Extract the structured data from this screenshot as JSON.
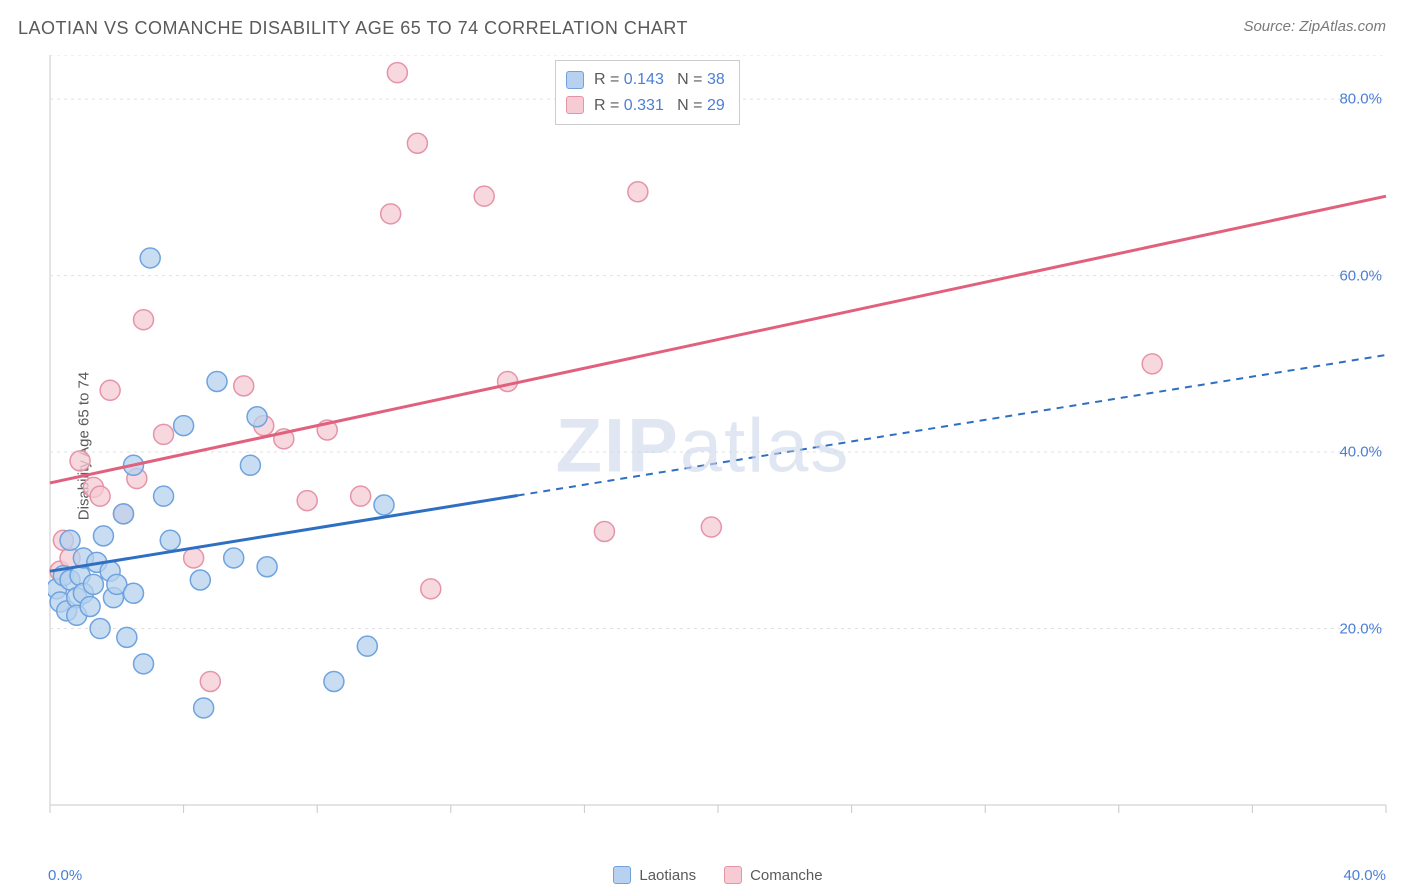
{
  "title": "LAOTIAN VS COMANCHE DISABILITY AGE 65 TO 74 CORRELATION CHART",
  "source": "Source: ZipAtlas.com",
  "ylabel": "Disability Age 65 to 74",
  "watermark": {
    "bold": "ZIP",
    "rest": "atlas"
  },
  "chart": {
    "type": "scatter",
    "background_color": "#ffffff",
    "grid_color": "#e0e0e0",
    "axis_color": "#dcdcdc",
    "tick_color": "#c8c8c8",
    "label_fontsize": 15,
    "tick_fontsize": 15,
    "value_color": "#4b7fd6",
    "xlim": [
      0,
      40
    ],
    "ylim": [
      0,
      85
    ],
    "y_ticks": [
      20,
      40,
      60,
      80
    ],
    "x_ticks_minor_step": 4,
    "x_tick_label_min": "0.0%",
    "x_tick_label_max": "40.0%",
    "series": [
      {
        "name": "Laotians",
        "color_fill": "#b7d1ee",
        "color_stroke": "#6ea3de",
        "color_line": "#2f6fc2",
        "marker_radius": 10,
        "marker_opacity": 0.75,
        "trend": {
          "x1": 0,
          "y1": 26.5,
          "x2": 40,
          "y2": 51,
          "solid_until_x": 14
        },
        "stats": {
          "R": "0.143",
          "N": "38"
        },
        "points": [
          [
            0.2,
            24.5
          ],
          [
            0.3,
            23.0
          ],
          [
            0.4,
            26.0
          ],
          [
            0.5,
            22.0
          ],
          [
            0.6,
            25.5
          ],
          [
            0.6,
            30.0
          ],
          [
            0.8,
            23.5
          ],
          [
            0.8,
            21.5
          ],
          [
            0.9,
            26.0
          ],
          [
            1.0,
            24.0
          ],
          [
            1.0,
            28.0
          ],
          [
            1.2,
            22.5
          ],
          [
            1.3,
            25.0
          ],
          [
            1.4,
            27.5
          ],
          [
            1.5,
            20.0
          ],
          [
            1.6,
            30.5
          ],
          [
            1.8,
            26.5
          ],
          [
            1.9,
            23.5
          ],
          [
            2.0,
            25.0
          ],
          [
            2.2,
            33.0
          ],
          [
            2.3,
            19.0
          ],
          [
            2.5,
            38.5
          ],
          [
            2.5,
            24.0
          ],
          [
            2.8,
            16.0
          ],
          [
            3.0,
            62.0
          ],
          [
            3.4,
            35.0
          ],
          [
            3.6,
            30.0
          ],
          [
            4.0,
            43.0
          ],
          [
            4.5,
            25.5
          ],
          [
            4.6,
            11.0
          ],
          [
            5.0,
            48.0
          ],
          [
            5.5,
            28.0
          ],
          [
            6.0,
            38.5
          ],
          [
            6.2,
            44.0
          ],
          [
            6.5,
            27.0
          ],
          [
            8.5,
            14.0
          ],
          [
            9.5,
            18.0
          ],
          [
            10.0,
            34.0
          ]
        ]
      },
      {
        "name": "Comanche",
        "color_fill": "#f6cbd4",
        "color_stroke": "#e594a8",
        "color_line": "#e0607d",
        "marker_radius": 10,
        "marker_opacity": 0.75,
        "trend": {
          "x1": 0,
          "y1": 36.5,
          "x2": 40,
          "y2": 69,
          "solid_until_x": 40
        },
        "stats": {
          "R": "0.331",
          "N": "29"
        },
        "points": [
          [
            0.3,
            26.5
          ],
          [
            0.4,
            30.0
          ],
          [
            0.6,
            28.0
          ],
          [
            0.9,
            39.0
          ],
          [
            1.3,
            36.0
          ],
          [
            1.5,
            35.0
          ],
          [
            1.8,
            47.0
          ],
          [
            2.2,
            33.0
          ],
          [
            2.6,
            37.0
          ],
          [
            2.8,
            55.0
          ],
          [
            3.4,
            42.0
          ],
          [
            4.3,
            28.0
          ],
          [
            4.8,
            14.0
          ],
          [
            5.8,
            47.5
          ],
          [
            6.4,
            43.0
          ],
          [
            7.0,
            41.5
          ],
          [
            7.7,
            34.5
          ],
          [
            8.3,
            42.5
          ],
          [
            9.3,
            35.0
          ],
          [
            10.2,
            67.0
          ],
          [
            10.4,
            83.0
          ],
          [
            11.0,
            75.0
          ],
          [
            11.4,
            24.5
          ],
          [
            13.0,
            69.0
          ],
          [
            13.7,
            48.0
          ],
          [
            16.6,
            31.0
          ],
          [
            17.6,
            69.5
          ],
          [
            19.8,
            31.5
          ],
          [
            33.0,
            50.0
          ]
        ]
      }
    ],
    "legend": {
      "items": [
        {
          "label": "Laotians",
          "fill": "#b7d1ee",
          "stroke": "#6ea3de"
        },
        {
          "label": "Comanche",
          "fill": "#f6cbd4",
          "stroke": "#e594a8"
        }
      ]
    }
  }
}
